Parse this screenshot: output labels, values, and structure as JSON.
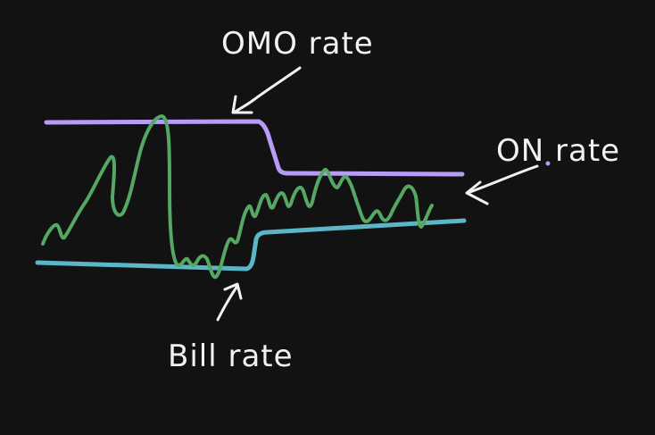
{
  "labels": {
    "omo_rate": "OMO rate",
    "on_rate": "ON rate",
    "bill_rate": "Bill rate"
  },
  "colors": {
    "background": "#121212",
    "omo_line": "#b79cf5",
    "bill_line": "#5bb6c7",
    "on_line": "#55a863",
    "text": "#f2f2f2"
  }
}
